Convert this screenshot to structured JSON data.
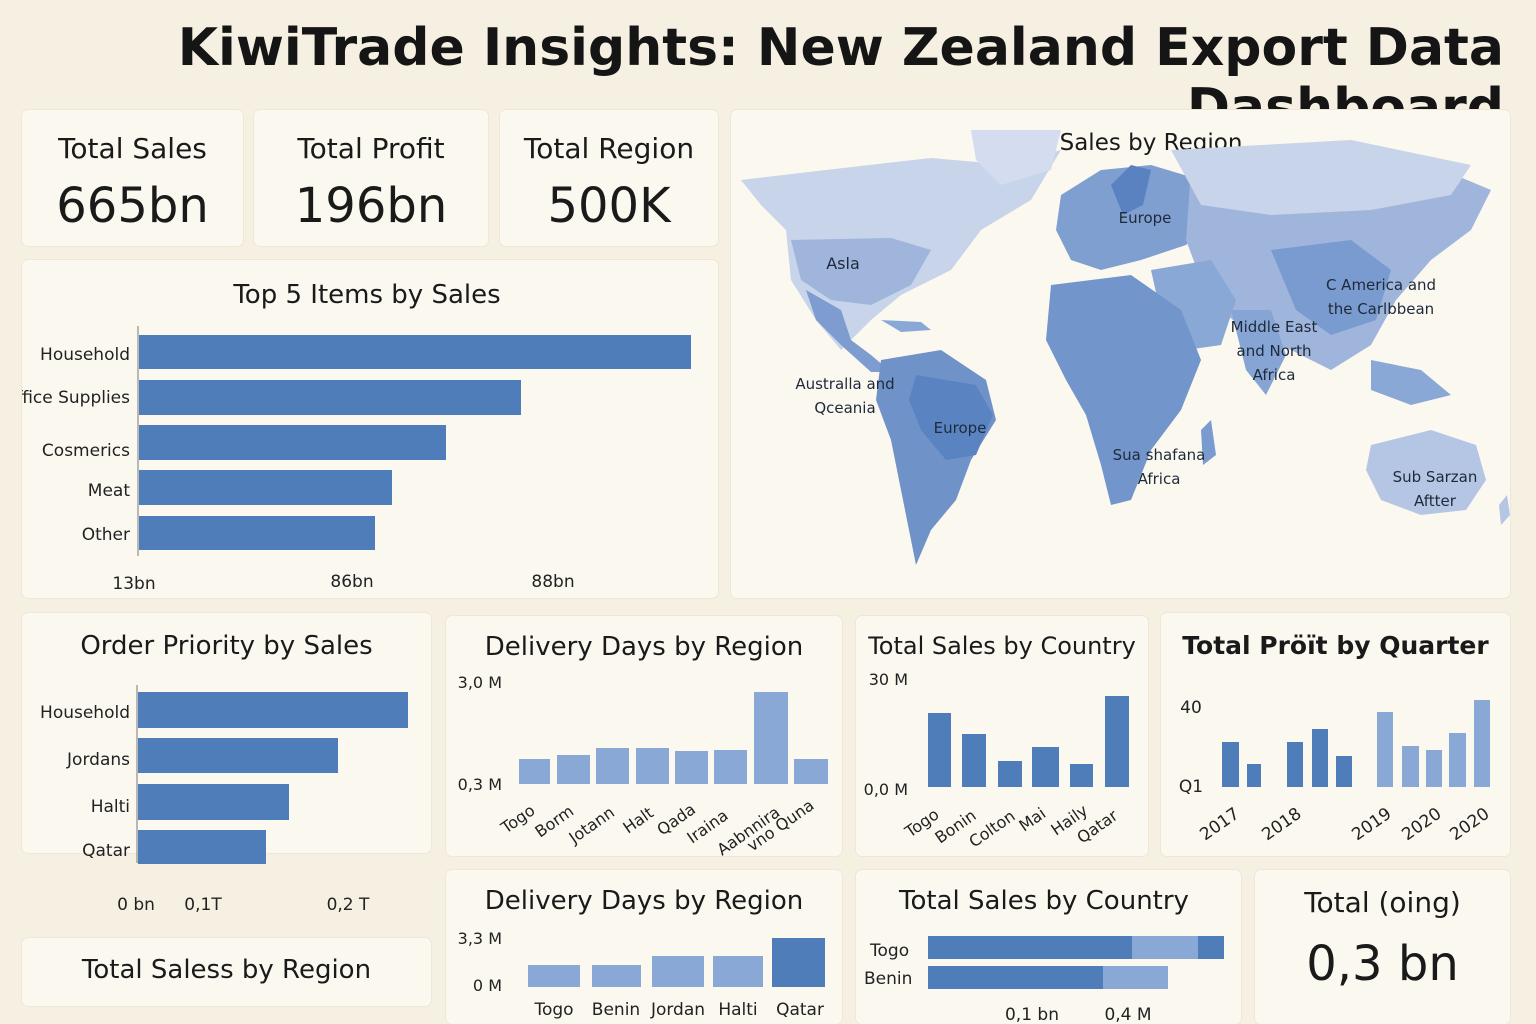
{
  "title": "KiwiTrade Insights: New Zealand Export Data Dashboard",
  "kpis": [
    {
      "label": "Total Sales",
      "value": "665bn"
    },
    {
      "label": "Total Profit",
      "value": "196bn"
    },
    {
      "label": "Total Region",
      "value": "500K"
    }
  ],
  "top_items": {
    "title": "Top 5 Items by Sales",
    "categories": [
      "Household",
      "Office Supplies",
      "Cosmerics",
      "Meat",
      "Other"
    ],
    "axis_ticks": [
      "13bn",
      "86bn",
      "88bn"
    ]
  },
  "map": {
    "title": "Total Sales by Region",
    "labels": [
      {
        "text": "Europe"
      },
      {
        "text": "Asla"
      },
      {
        "text": "C  America and the Carlbbean"
      },
      {
        "text": "Middle East and North Africa"
      },
      {
        "text": "Australla and Qceania"
      },
      {
        "text": "Europe"
      },
      {
        "text": "Sua shafana Africa"
      },
      {
        "text": "Sub Sarzan Aftter"
      }
    ]
  },
  "order_priority": {
    "title": "Order Priority by Sales",
    "categories": [
      "Household",
      "Jordans",
      "Halti",
      "Qatar"
    ],
    "axis_ticks": [
      "0 bn",
      "0,1T",
      "0,2 T"
    ]
  },
  "delivery_days_1": {
    "title": "Delivery Days by Region",
    "y_ticks": [
      "3,0 M",
      "0,3 M"
    ],
    "categories": [
      "Togo",
      "Borm",
      "Jotann",
      "Halt",
      "Qada",
      "Iraina",
      "Aabnnira",
      "vno Quna"
    ]
  },
  "sales_country_1": {
    "title": "Total Sales by Country",
    "y_ticks": [
      "30 M",
      "0,0 M"
    ],
    "categories": [
      "Togo",
      "Bonin",
      "Colton",
      "Mai",
      "Haily",
      "Qatar"
    ]
  },
  "profit_quarter": {
    "title": "Total Pröït by Quarter",
    "y_ticks": [
      "40",
      "Q1"
    ],
    "x_labels": [
      "2017",
      "2018",
      "2019",
      "2020",
      "2020"
    ]
  },
  "sales_region_footer": {
    "title": "Total Saless by Region"
  },
  "delivery_days_2": {
    "title": "Delivery Days by Region",
    "y_ticks": [
      "3,3 M",
      "0 M"
    ],
    "categories": [
      "Togo",
      "Benin",
      "Jordan",
      "Halti",
      "Qatar"
    ]
  },
  "sales_country_2": {
    "title": "Total Sales by Country",
    "categories": [
      "Togo",
      "Benin"
    ],
    "axis_ticks": [
      "0,1 bn",
      "0,4 M"
    ]
  },
  "total_oing": {
    "label": "Total (oing)",
    "value": "0,3 bn"
  },
  "chart_data": [
    {
      "type": "bar",
      "orientation": "horizontal",
      "title": "Top 5 Items by Sales",
      "categories": [
        "Household",
        "Office Supplies",
        "Cosmerics",
        "Meat",
        "Other"
      ],
      "values": [
        100,
        69,
        55,
        46,
        43
      ],
      "x_tick_labels": [
        "13bn",
        "86bn",
        "88bn"
      ]
    },
    {
      "type": "bar",
      "orientation": "horizontal",
      "title": "Order Priority by Sales",
      "categories": [
        "Household",
        "Jordans",
        "Halti",
        "Qatar"
      ],
      "values": [
        100,
        74,
        56,
        47
      ],
      "x_tick_labels": [
        "0 bn",
        "0,1T",
        "0,2 T"
      ]
    },
    {
      "type": "bar",
      "title": "Delivery Days by Region",
      "categories": [
        "Togo",
        "Borm",
        "Jotann",
        "Halt",
        "Qada",
        "Iraina",
        "Aabnnira",
        "vno Quna"
      ],
      "values": [
        0.85,
        0.92,
        1.1,
        1.12,
        1.05,
        1.08,
        2.9,
        0.85
      ],
      "y_tick_labels": [
        "3,0 M",
        "0,3 M"
      ],
      "highlight_index": 6
    },
    {
      "type": "bar",
      "title": "Total Sales by Country",
      "categories": [
        "Togo",
        "Bonin",
        "Colton",
        "Mai",
        "Haily",
        "Qatar"
      ],
      "values": [
        22,
        16,
        8,
        12,
        7,
        27
      ],
      "y_tick_labels": [
        "30 M",
        "0,0 M"
      ]
    },
    {
      "type": "bar",
      "title": "Total Pröït by Quarter",
      "x_tick_labels": [
        "2017",
        "2018",
        "2019",
        "2020",
        "2020"
      ],
      "series": [
        {
          "values": [
            36,
            20,
            36,
            42,
            28,
            0,
            55,
            32,
            28,
            40,
            65
          ]
        }
      ],
      "y_tick_labels": [
        "40",
        "Q1"
      ]
    },
    {
      "type": "bar",
      "title": "Delivery Days by Region",
      "categories": [
        "Togo",
        "Benin",
        "Jordan",
        "Halti",
        "Qatar"
      ],
      "values": [
        0.8,
        0.8,
        1.2,
        1.2,
        3.0
      ],
      "y_tick_labels": [
        "3,3 M",
        "0 M"
      ]
    },
    {
      "type": "bar",
      "orientation": "horizontal",
      "stacked": true,
      "title": "Total Sales by Country",
      "categories": [
        "Togo",
        "Benin"
      ],
      "series": [
        {
          "values": [
            0.69,
            0.59
          ]
        },
        {
          "values": [
            0.22,
            0.22
          ]
        },
        {
          "values": [
            0.09,
            0
          ]
        }
      ],
      "x_tick_labels": [
        "0,1 bn",
        "0,4 M"
      ]
    }
  ],
  "colors": {
    "bar": "#4f7db9",
    "bar_light": "#8aa8d6",
    "background": "#f6f0e2",
    "card": "#fbf8f0"
  }
}
